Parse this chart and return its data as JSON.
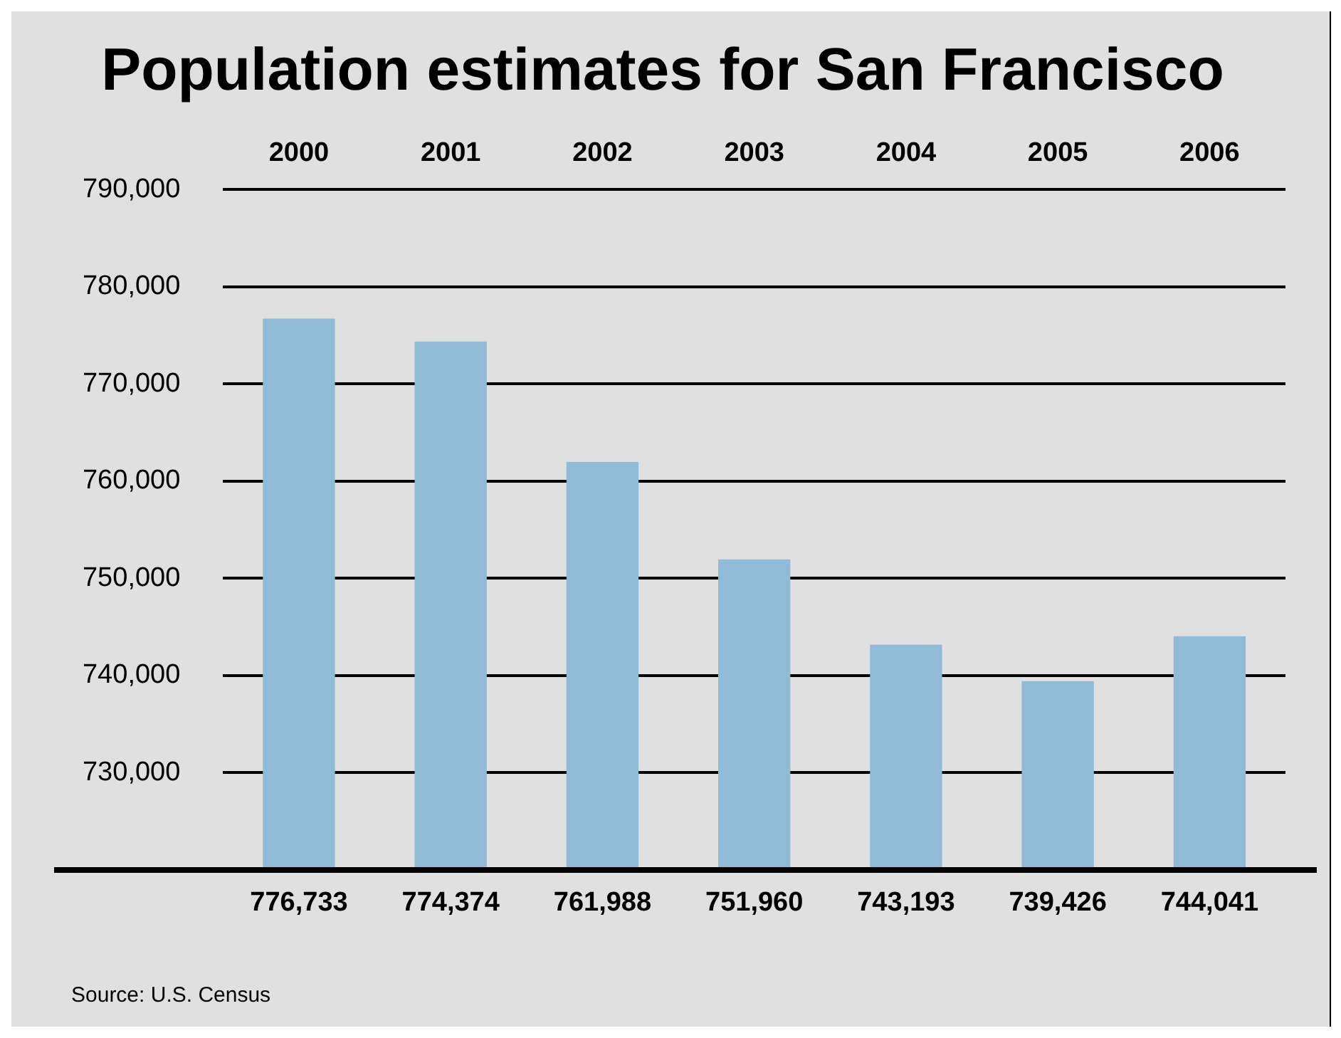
{
  "chart_data": {
    "type": "bar",
    "title": "Population estimates for San Francisco",
    "categories": [
      "2000",
      "2001",
      "2002",
      "2003",
      "2004",
      "2005",
      "2006"
    ],
    "values": [
      776733,
      774374,
      761988,
      751960,
      743193,
      739426,
      744041
    ],
    "value_labels": [
      "776,733",
      "774,374",
      "761,988",
      "751,960",
      "743,193",
      "739,426",
      "744,041"
    ],
    "color": "#8fbbd6",
    "ylim": [
      720000,
      790000
    ],
    "yticks": [
      {
        "value": 720000,
        "label": null
      },
      {
        "value": 730000,
        "label": "730,000"
      },
      {
        "value": 740000,
        "label": "740,000"
      },
      {
        "value": 750000,
        "label": "750,000"
      },
      {
        "value": 760000,
        "label": "760,000"
      },
      {
        "value": 770000,
        "label": "770,000"
      },
      {
        "value": 780000,
        "label": "780,000"
      },
      {
        "value": 790000,
        "label": "790,000"
      }
    ],
    "grid": "y",
    "legend": false,
    "annotations": [
      "Source: U.S. Census"
    ]
  }
}
